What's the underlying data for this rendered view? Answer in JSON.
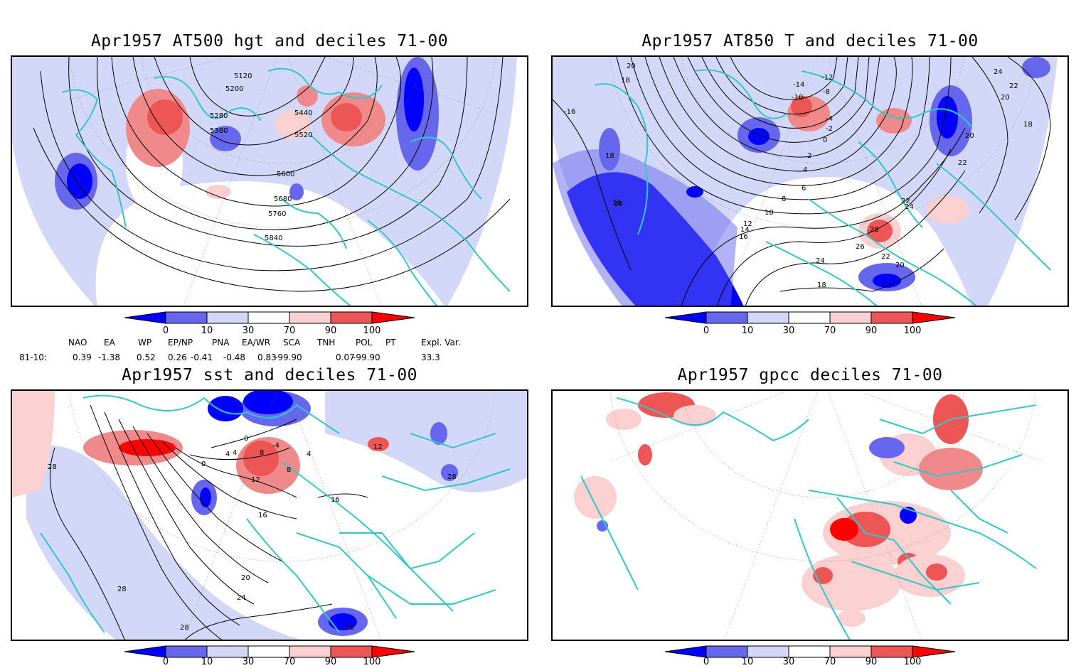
{
  "panels": [
    {
      "id": "tl",
      "title": "Apr1957 AT500 hgt and deciles 71-00",
      "contour_labels": [
        "5120",
        "5200",
        "5280",
        "5360",
        "5440",
        "5520",
        "5600",
        "5680",
        "5760",
        "5840"
      ]
    },
    {
      "id": "tr",
      "title": "Apr1957 AT850 T and deciles 71-00",
      "contour_labels": [
        "20",
        "18",
        "-16",
        "18",
        "16",
        "-12",
        "-14",
        "-10",
        "-8",
        "-4",
        "-2",
        "0",
        "2",
        "4",
        "6",
        "8",
        "10",
        "12",
        "14",
        "16",
        "24",
        "22",
        "20",
        "18",
        "20",
        "22",
        "24",
        "22",
        "28",
        "26",
        "24",
        "22",
        "20",
        "18",
        "16"
      ]
    },
    {
      "id": "bl",
      "title": "Apr1957 sst and deciles 71-00",
      "contour_labels": [
        "28",
        "4",
        "0",
        "4",
        "8",
        "0",
        "-4",
        "4",
        "12",
        "8",
        "16",
        "16",
        "12",
        "28",
        "20",
        "24",
        "28",
        "28",
        "28"
      ]
    },
    {
      "id": "br",
      "title": "Apr1957 gpcc deciles 71-00",
      "contour_labels": []
    }
  ],
  "colorbar": {
    "ticks": [
      "0",
      "10",
      "30",
      "70",
      "90",
      "100"
    ],
    "colors": [
      "#0000ff",
      "#6666ee",
      "#d4d8f8",
      "#ffffff",
      "#fad0d0",
      "#ee5555",
      "#ff0000"
    ]
  },
  "indices": {
    "headers": [
      "NAO",
      "EA",
      "WP",
      "EP/NP",
      "PNA",
      "EA/WR",
      "SCA",
      "TNH",
      "POL",
      "PT",
      "Expl. Var."
    ],
    "row_label": "81-10:",
    "values": [
      "0.39",
      "-1.38",
      "0.52",
      "0.26",
      "-0.41",
      "-0.48",
      "0.83",
      "-99.90",
      "0.07",
      "-99.90",
      "33.3"
    ]
  }
}
